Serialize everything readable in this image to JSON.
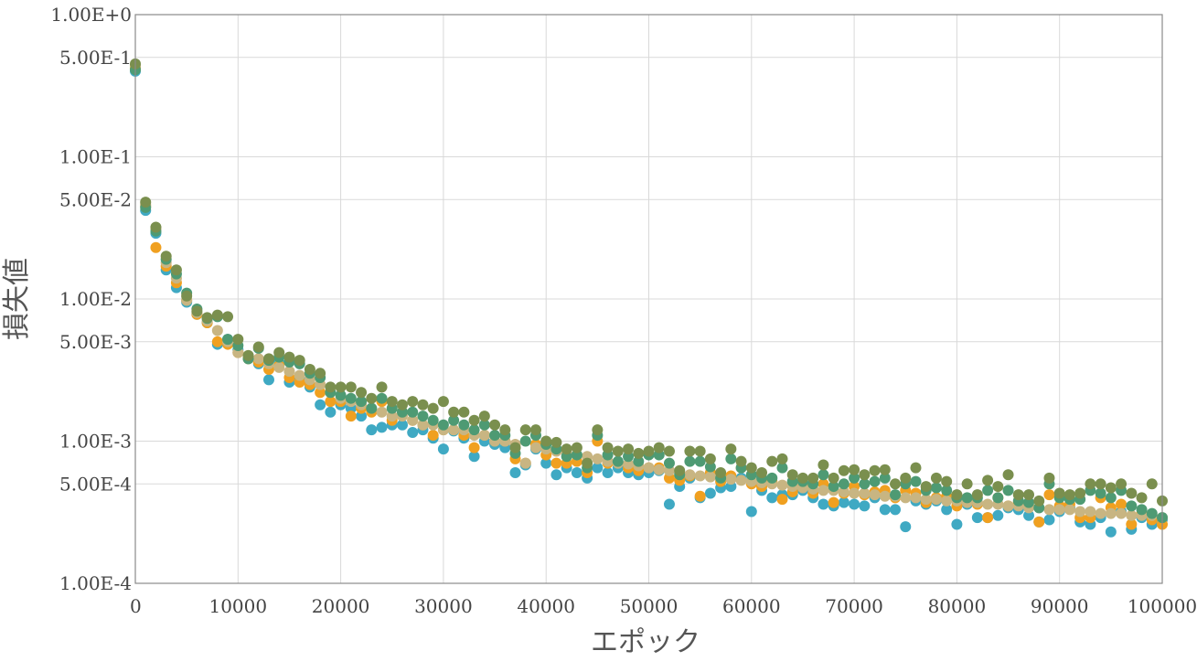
{
  "chart_data": {
    "type": "scatter",
    "title": "",
    "xlabel": "エポック",
    "ylabel": "損失値",
    "xlim": [
      0,
      100000
    ],
    "ylim": [
      0.0001,
      1
    ],
    "y_scale": "log",
    "grid": true,
    "legend": "none",
    "x_ticks": [
      0,
      10000,
      20000,
      30000,
      40000,
      50000,
      60000,
      70000,
      80000,
      90000,
      100000
    ],
    "x_tick_labels": [
      "0",
      "10000",
      "20000",
      "30000",
      "40000",
      "50000",
      "60000",
      "70000",
      "80000",
      "90000",
      "100000"
    ],
    "y_ticks": [
      1,
      0.5,
      0.1,
      0.05,
      0.01,
      0.005,
      0.001,
      0.0005,
      0.0001
    ],
    "y_tick_labels": [
      "1.00E+0",
      "5.00E-1",
      "1.00E-1",
      "5.00E-2",
      "1.00E-2",
      "5.00E-3",
      "1.00E-3",
      "5.00E-4",
      "1.00E-4"
    ],
    "x": [
      0,
      1000,
      2000,
      3000,
      4000,
      5000,
      6000,
      7000,
      8000,
      9000,
      10000,
      11000,
      12000,
      13000,
      14000,
      15000,
      16000,
      17000,
      18000,
      19000,
      20000,
      21000,
      22000,
      23000,
      24000,
      25000,
      26000,
      27000,
      28000,
      29000,
      30000,
      31000,
      32000,
      33000,
      34000,
      35000,
      36000,
      37000,
      38000,
      39000,
      40000,
      41000,
      42000,
      43000,
      44000,
      45000,
      46000,
      47000,
      48000,
      49000,
      50000,
      51000,
      52000,
      53000,
      54000,
      55000,
      56000,
      57000,
      58000,
      59000,
      60000,
      61000,
      62000,
      63000,
      64000,
      65000,
      66000,
      67000,
      68000,
      69000,
      70000,
      71000,
      72000,
      73000,
      74000,
      75000,
      76000,
      77000,
      78000,
      79000,
      80000,
      81000,
      82000,
      83000,
      84000,
      85000,
      86000,
      87000,
      88000,
      89000,
      90000,
      91000,
      92000,
      93000,
      94000,
      95000,
      96000,
      97000,
      98000,
      99000,
      100000
    ],
    "series": [
      {
        "color": "#3fa9c3",
        "values": [
          0.4,
          0.042,
          0.029,
          0.016,
          0.012,
          0.0095,
          0.0078,
          0.0068,
          0.0048,
          0.0052,
          0.0044,
          0.0038,
          0.0035,
          0.0027,
          0.0036,
          0.0026,
          0.0028,
          0.0024,
          0.0018,
          0.0016,
          0.0018,
          0.0017,
          0.0015,
          0.0012,
          0.00125,
          0.0013,
          0.0013,
          0.00115,
          0.0012,
          0.00105,
          0.00088,
          0.00118,
          0.00105,
          0.00078,
          0.001,
          0.00095,
          0.0009,
          0.0006,
          0.00068,
          0.00088,
          0.0007,
          0.00058,
          0.00065,
          0.0006,
          0.00055,
          0.00065,
          0.0006,
          0.00065,
          0.0006,
          0.00058,
          0.0006,
          0.00062,
          0.00036,
          0.00048,
          0.00055,
          0.0004,
          0.00043,
          0.00047,
          0.00048,
          0.00055,
          0.00032,
          0.00045,
          0.0004,
          0.00042,
          0.00042,
          0.00045,
          0.0004,
          0.00036,
          0.00035,
          0.00037,
          0.00036,
          0.00035,
          0.0004,
          0.00033,
          0.00033,
          0.00025,
          0.00038,
          0.00036,
          0.00038,
          0.00033,
          0.00026,
          0.00036,
          0.00029,
          0.00029,
          0.0003,
          0.00034,
          0.00033,
          0.0003,
          0.00027,
          0.00028,
          0.00032,
          0.00034,
          0.00027,
          0.00026,
          0.00029,
          0.00023,
          0.00032,
          0.00024,
          0.00029,
          0.00026,
          0.00028
        ]
      },
      {
        "color": "#f0a020",
        "values": [
          0.42,
          0.045,
          0.023,
          0.017,
          0.013,
          0.0098,
          0.0078,
          0.0068,
          0.005,
          0.0048,
          0.0042,
          0.0038,
          0.0036,
          0.0032,
          0.0034,
          0.0028,
          0.0026,
          0.0025,
          0.0022,
          0.0019,
          0.0019,
          0.0015,
          0.0017,
          0.0016,
          0.0019,
          0.0014,
          0.0016,
          0.0014,
          0.0013,
          0.0011,
          0.0012,
          0.0012,
          0.0011,
          0.0009,
          0.0011,
          0.001,
          0.001,
          0.00075,
          0.0007,
          0.00095,
          0.0008,
          0.0007,
          0.0007,
          0.00072,
          0.0006,
          0.001,
          0.0007,
          0.0007,
          0.00065,
          0.00062,
          0.00065,
          0.00065,
          0.00055,
          0.00053,
          0.00057,
          0.00041,
          0.0006,
          0.00052,
          0.00057,
          0.00065,
          0.0005,
          0.00048,
          0.00052,
          0.00039,
          0.00044,
          0.00048,
          0.00043,
          0.0005,
          0.00037,
          0.00043,
          0.00048,
          0.00042,
          0.00044,
          0.00045,
          0.0004,
          0.00045,
          0.00043,
          0.00037,
          0.0004,
          0.00041,
          0.00035,
          0.00038,
          0.00036,
          0.00029,
          0.0004,
          0.00035,
          0.00037,
          0.00035,
          0.00027,
          0.00042,
          0.00035,
          0.00036,
          0.00029,
          0.00029,
          0.0004,
          0.00034,
          0.00036,
          0.00026,
          0.00031,
          0.00028,
          0.00026
        ]
      },
      {
        "color": "#c8b582",
        "values": [
          0.44,
          0.046,
          0.031,
          0.018,
          0.014,
          0.0098,
          0.008,
          0.007,
          0.006,
          0.005,
          0.0042,
          0.004,
          0.0038,
          0.0035,
          0.0033,
          0.0031,
          0.0029,
          0.0027,
          0.0025,
          0.0022,
          0.002,
          0.0019,
          0.0018,
          0.0017,
          0.0016,
          0.0015,
          0.0015,
          0.0014,
          0.0013,
          0.0013,
          0.0012,
          0.0012,
          0.0012,
          0.0011,
          0.0011,
          0.001,
          0.001,
          0.00095,
          0.0007,
          0.0009,
          0.00088,
          0.00085,
          0.00082,
          0.0008,
          0.00078,
          0.00075,
          0.00072,
          0.0007,
          0.00069,
          0.00067,
          0.00065,
          0.00063,
          0.00062,
          0.0006,
          0.00058,
          0.00057,
          0.00056,
          0.00055,
          0.00054,
          0.00053,
          0.00052,
          0.00051,
          0.0005,
          0.00049,
          0.00048,
          0.00047,
          0.00046,
          0.00045,
          0.00045,
          0.00044,
          0.00043,
          0.00043,
          0.00042,
          0.00041,
          0.00041,
          0.0004,
          0.0004,
          0.00039,
          0.00039,
          0.00038,
          0.00038,
          0.00037,
          0.00037,
          0.00036,
          0.00036,
          0.00035,
          0.00035,
          0.00034,
          0.00034,
          0.00033,
          0.00033,
          0.00033,
          0.00032,
          0.00032,
          0.00031,
          0.00031,
          0.00031,
          0.0003,
          0.0003,
          0.0003,
          0.00029
        ]
      },
      {
        "color": "#4e9a73",
        "values": [
          0.41,
          0.044,
          0.03,
          0.019,
          0.015,
          0.011,
          0.0085,
          0.0073,
          0.0075,
          0.0052,
          0.0047,
          0.0038,
          0.0045,
          0.0037,
          0.0039,
          0.0036,
          0.0035,
          0.003,
          0.0028,
          0.0022,
          0.0021,
          0.002,
          0.0019,
          0.0017,
          0.002,
          0.0017,
          0.0016,
          0.0016,
          0.0015,
          0.0014,
          0.0013,
          0.0014,
          0.0013,
          0.0012,
          0.0013,
          0.0011,
          0.0011,
          0.00082,
          0.001,
          0.0011,
          0.00095,
          0.00088,
          0.00078,
          0.0008,
          0.00065,
          0.0011,
          0.0008,
          0.00072,
          0.00078,
          0.00072,
          0.0008,
          0.0008,
          0.0007,
          0.00058,
          0.00072,
          0.00072,
          0.00066,
          0.00055,
          0.00075,
          0.00065,
          0.00058,
          0.00055,
          0.00055,
          0.00065,
          0.00052,
          0.00052,
          0.0005,
          0.00058,
          0.00048,
          0.0005,
          0.00055,
          0.0005,
          0.00052,
          0.00055,
          0.00042,
          0.0005,
          0.00052,
          0.00045,
          0.00047,
          0.00045,
          0.0004,
          0.0004,
          0.0004,
          0.00045,
          0.0004,
          0.00045,
          0.00038,
          0.00037,
          0.00034,
          0.0005,
          0.0004,
          0.00039,
          0.00039,
          0.00045,
          0.00043,
          0.0004,
          0.00045,
          0.00035,
          0.00033,
          0.00031,
          0.00029
        ]
      },
      {
        "color": "#7a8f4e",
        "values": [
          0.45,
          0.048,
          0.032,
          0.02,
          0.016,
          0.0105,
          0.0082,
          0.0074,
          0.0077,
          0.0075,
          0.0052,
          0.004,
          0.0046,
          0.0038,
          0.0042,
          0.0039,
          0.0037,
          0.0032,
          0.003,
          0.0024,
          0.0024,
          0.0024,
          0.0022,
          0.002,
          0.0024,
          0.0019,
          0.0018,
          0.0019,
          0.0018,
          0.0017,
          0.0019,
          0.0016,
          0.0016,
          0.0014,
          0.0015,
          0.0013,
          0.0012,
          0.0009,
          0.0012,
          0.0012,
          0.001,
          0.00098,
          0.00088,
          0.0009,
          0.0007,
          0.0012,
          0.0009,
          0.00085,
          0.00088,
          0.00082,
          0.00085,
          0.0009,
          0.00085,
          0.00062,
          0.00085,
          0.00085,
          0.00075,
          0.0006,
          0.00088,
          0.00072,
          0.00065,
          0.0006,
          0.00072,
          0.00075,
          0.00058,
          0.00055,
          0.00055,
          0.00068,
          0.00055,
          0.00062,
          0.00063,
          0.00058,
          0.00062,
          0.00063,
          0.0005,
          0.00055,
          0.00065,
          0.00048,
          0.00055,
          0.00052,
          0.00042,
          0.0005,
          0.00042,
          0.00053,
          0.00048,
          0.00058,
          0.00042,
          0.00042,
          0.00038,
          0.00055,
          0.00043,
          0.00042,
          0.00043,
          0.0005,
          0.0005,
          0.00047,
          0.0005,
          0.00043,
          0.0004,
          0.0005,
          0.00038
        ]
      }
    ]
  }
}
